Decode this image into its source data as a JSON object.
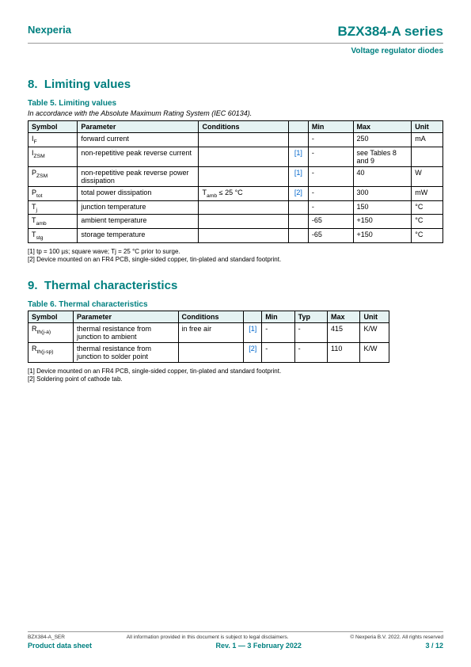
{
  "header": {
    "brand": "Nexperia",
    "product_title": "BZX384-A series",
    "subtitle": "Voltage regulator diodes"
  },
  "section8": {
    "number": "8.",
    "title": "Limiting values",
    "table_title": "Table 5. Limiting values",
    "caption": "In accordance with the Absolute Maximum Rating System (IEC 60134).",
    "columns": [
      "Symbol",
      "Parameter",
      "Conditions",
      "",
      "Min",
      "Max",
      "Unit"
    ],
    "rows": [
      {
        "symbol": "I",
        "sub": "F",
        "param": "forward current",
        "cond": "",
        "note": "",
        "min": "-",
        "max": "250",
        "unit": "mA"
      },
      {
        "symbol": "I",
        "sub": "ZSM",
        "param": "non-repetitive peak reverse current",
        "cond": "",
        "note": "[1]",
        "min": "-",
        "max": "see Tables 8 and 9",
        "unit": ""
      },
      {
        "symbol": "P",
        "sub": "ZSM",
        "param": "non-repetitive peak reverse power dissipation",
        "cond": "",
        "note": "[1]",
        "min": "-",
        "max": "40",
        "unit": "W"
      },
      {
        "symbol": "P",
        "sub": "tot",
        "param": "total power dissipation",
        "cond": "Tamb ≤ 25 °C",
        "note": "[2]",
        "min": "-",
        "max": "300",
        "unit": "mW"
      },
      {
        "symbol": "T",
        "sub": "j",
        "param": "junction temperature",
        "cond": "",
        "note": "",
        "min": "-",
        "max": "150",
        "unit": "°C"
      },
      {
        "symbol": "T",
        "sub": "amb",
        "param": "ambient temperature",
        "cond": "",
        "note": "",
        "min": "-65",
        "max": "+150",
        "unit": "°C"
      },
      {
        "symbol": "T",
        "sub": "stg",
        "param": "storage temperature",
        "cond": "",
        "note": "",
        "min": "-65",
        "max": "+150",
        "unit": "°C"
      }
    ],
    "footnotes": [
      "[1]   tp = 100 µs; square wave; Tj = 25 °C prior to surge.",
      "[2]   Device mounted on an FR4 PCB, single-sided copper, tin-plated and standard footprint."
    ]
  },
  "section9": {
    "number": "9.",
    "title": "Thermal characteristics",
    "table_title": "Table 6. Thermal characteristics",
    "columns": [
      "Symbol",
      "Parameter",
      "Conditions",
      "",
      "Min",
      "Typ",
      "Max",
      "Unit"
    ],
    "rows": [
      {
        "symbol": "R",
        "sub": "th(j-a)",
        "param": "thermal resistance from junction to ambient",
        "cond": "in free air",
        "note": "[1]",
        "min": "-",
        "typ": "-",
        "max": "415",
        "unit": "K/W"
      },
      {
        "symbol": "R",
        "sub": "th(j-sp)",
        "param": "thermal resistance from junction to solder point",
        "cond": "",
        "note": "[2]",
        "min": "-",
        "typ": "-",
        "max": "110",
        "unit": "K/W"
      }
    ],
    "footnotes": [
      "[1]   Device mounted on an FR4 PCB, single-sided copper, tin-plated and standard footprint.",
      "[2]   Soldering point of cathode tab."
    ]
  },
  "footer": {
    "doc_id": "BZX384-A_SER",
    "disclaimer": "All information provided in this document is subject to legal disclaimers.",
    "copyright": "© Nexperia B.V. 2022. All rights reserved",
    "left": "Product data sheet",
    "center": "Rev. 1 — 3 February 2022",
    "right": "3 / 12"
  },
  "colors": {
    "teal": "#008080",
    "header_bg": "#e5f2f2",
    "link": "#0066cc"
  }
}
